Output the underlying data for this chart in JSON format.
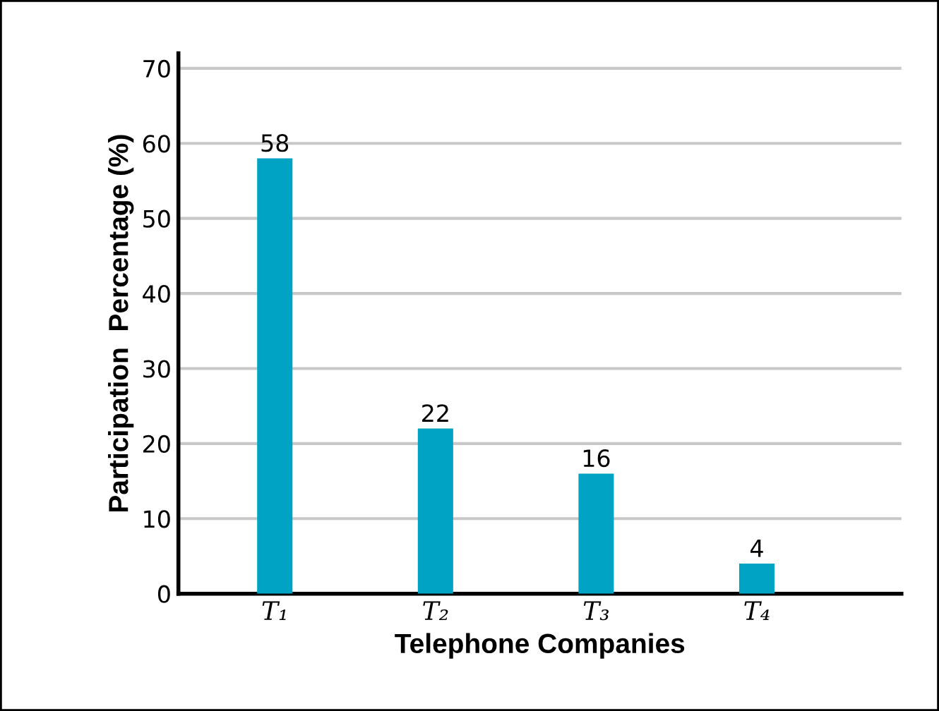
{
  "chart_data": {
    "type": "bar",
    "xlabel": "Telephone Companies",
    "ylabel": "Participation  Percentage (%)",
    "categories": [
      "T₁",
      "T₂",
      "T₃",
      "T₄"
    ],
    "values": [
      58,
      22,
      16,
      4
    ],
    "color": "#00a3c4",
    "ylim": [
      0,
      72
    ],
    "yticks": [
      0,
      10,
      20,
      30,
      40,
      50,
      60,
      70
    ],
    "grid": "y",
    "data_labels": true
  }
}
